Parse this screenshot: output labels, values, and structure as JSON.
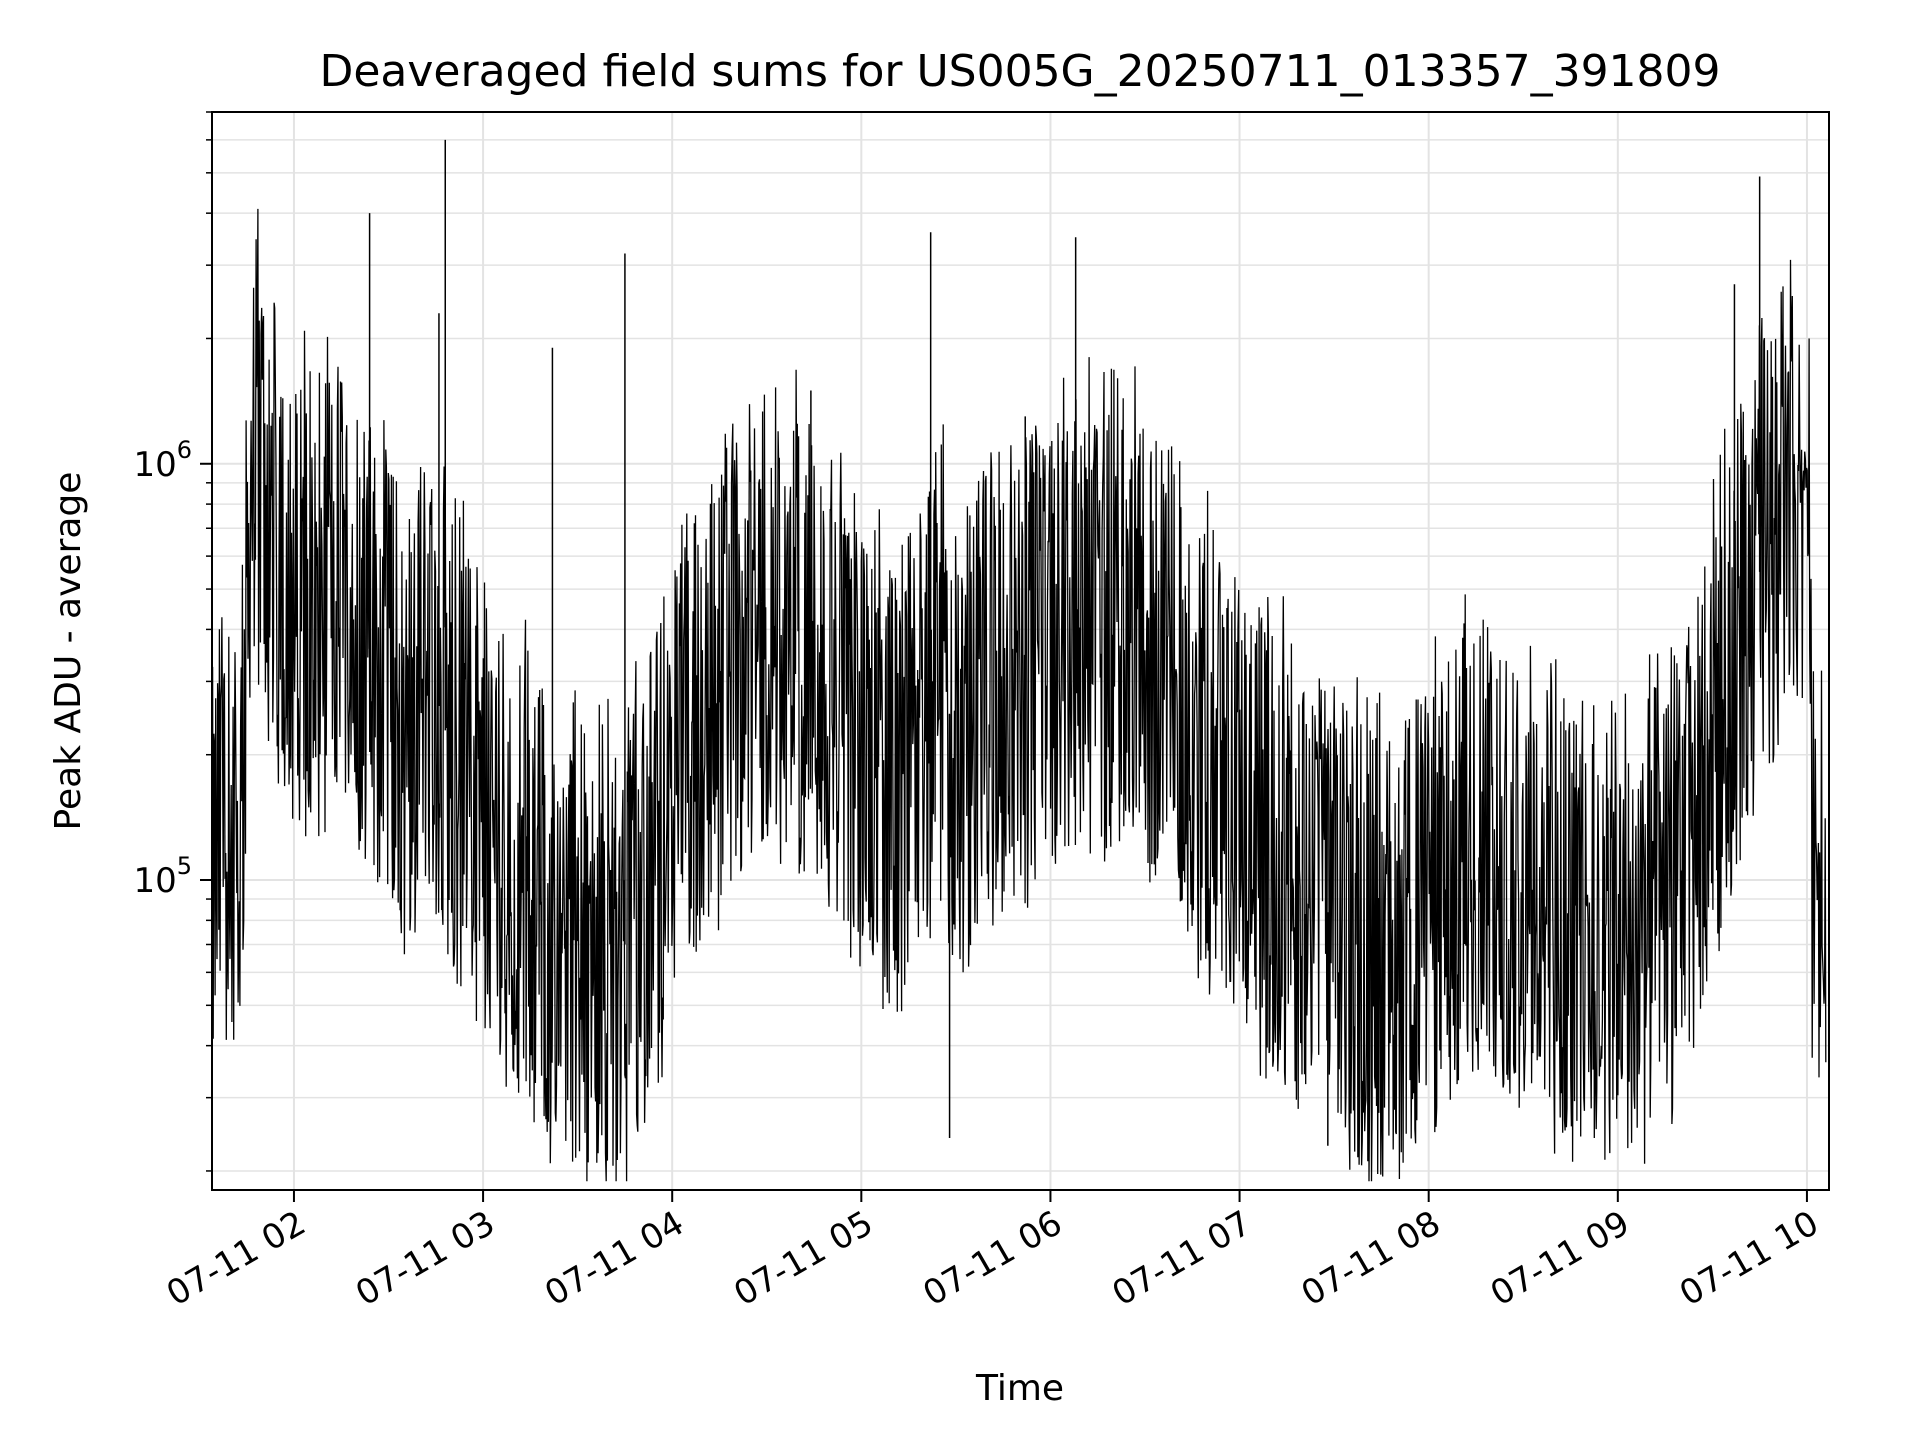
{
  "chart_data": {
    "type": "line",
    "title": "Deaveraged field sums for US005G_20250711_013357_391809",
    "xlabel": "Time",
    "ylabel": "Peak ADU - average",
    "xscale": "time",
    "yscale": "log",
    "xlim": [
      "2025-07-11 01:34",
      "2025-07-11 10:07"
    ],
    "ylim": [
      18000,
      7000000
    ],
    "grid": true,
    "legend": "none",
    "line_color": "#000000",
    "x_ticks": [
      {
        "value": "2025-07-11 02:00",
        "label": "07-11 02"
      },
      {
        "value": "2025-07-11 03:00",
        "label": "07-11 03"
      },
      {
        "value": "2025-07-11 04:00",
        "label": "07-11 04"
      },
      {
        "value": "2025-07-11 05:00",
        "label": "07-11 05"
      },
      {
        "value": "2025-07-11 06:00",
        "label": "07-11 06"
      },
      {
        "value": "2025-07-11 07:00",
        "label": "07-11 07"
      },
      {
        "value": "2025-07-11 08:00",
        "label": "07-11 08"
      },
      {
        "value": "2025-07-11 09:00",
        "label": "07-11 09"
      },
      {
        "value": "2025-07-11 10:00",
        "label": "07-11 10"
      }
    ],
    "y_ticks": [
      {
        "value": 100000,
        "base": "10",
        "exp": "5"
      },
      {
        "value": 1000000,
        "base": "10",
        "exp": "6"
      }
    ],
    "series": [
      {
        "x": [
          "2025-07-11 01:34",
          "2025-07-11 01:36",
          "2025-07-11 01:38",
          "2025-07-11 01:40",
          "2025-07-11 01:42",
          "2025-07-11 01:44",
          "2025-07-11 01:46",
          "2025-07-11 01:48",
          "2025-07-11 01:50",
          "2025-07-11 01:52",
          "2025-07-11 01:54",
          "2025-07-11 01:56",
          "2025-07-11 01:58",
          "2025-07-11 02:00",
          "2025-07-11 02:05",
          "2025-07-11 02:10",
          "2025-07-11 02:15",
          "2025-07-11 02:20",
          "2025-07-11 02:25",
          "2025-07-11 02:30",
          "2025-07-11 02:35",
          "2025-07-11 02:40",
          "2025-07-11 02:45",
          "2025-07-11 02:50",
          "2025-07-11 02:55",
          "2025-07-11 03:00",
          "2025-07-11 03:05",
          "2025-07-11 03:10",
          "2025-07-11 03:15",
          "2025-07-11 03:20",
          "2025-07-11 03:25",
          "2025-07-11 03:30",
          "2025-07-11 03:35",
          "2025-07-11 03:40",
          "2025-07-11 03:45",
          "2025-07-11 03:50",
          "2025-07-11 03:55",
          "2025-07-11 04:00",
          "2025-07-11 04:10",
          "2025-07-11 04:20",
          "2025-07-11 04:30",
          "2025-07-11 04:40",
          "2025-07-11 04:50",
          "2025-07-11 05:00",
          "2025-07-11 05:10",
          "2025-07-11 05:20",
          "2025-07-11 05:25",
          "2025-07-11 05:30",
          "2025-07-11 05:40",
          "2025-07-11 05:50",
          "2025-07-11 06:00",
          "2025-07-11 06:10",
          "2025-07-11 06:20",
          "2025-07-11 06:30",
          "2025-07-11 06:40",
          "2025-07-11 06:50",
          "2025-07-11 07:00",
          "2025-07-11 07:10",
          "2025-07-11 07:20",
          "2025-07-11 07:30",
          "2025-07-11 07:40",
          "2025-07-11 07:50",
          "2025-07-11 08:00",
          "2025-07-11 08:10",
          "2025-07-11 08:20",
          "2025-07-11 08:30",
          "2025-07-11 08:40",
          "2025-07-11 08:50",
          "2025-07-11 09:00",
          "2025-07-11 09:10",
          "2025-07-11 09:20",
          "2025-07-11 09:30",
          "2025-07-11 09:40",
          "2025-07-11 09:45",
          "2025-07-11 09:50",
          "2025-07-11 09:55",
          "2025-07-11 10:00",
          "2025-07-11 10:02",
          "2025-07-11 10:04",
          "2025-07-11 10:06"
        ],
        "y": [
          90000,
          120000,
          125000,
          110000,
          95000,
          200000,
          900000,
          1000000,
          950000,
          850000,
          700000,
          600000,
          500000,
          450000,
          500000,
          450000,
          600000,
          400000,
          350000,
          300000,
          250000,
          300000,
          280000,
          200000,
          180000,
          150000,
          130000,
          110000,
          95000,
          85000,
          75000,
          70000,
          65000,
          62000,
          70000,
          90000,
          120000,
          150000,
          250000,
          350000,
          450000,
          400000,
          300000,
          200000,
          160000,
          250000,
          350000,
          200000,
          300000,
          320000,
          380000,
          400000,
          420000,
          380000,
          300000,
          200000,
          150000,
          120000,
          100000,
          80000,
          70000,
          65000,
          90000,
          110000,
          120000,
          100000,
          85000,
          80000,
          75000,
          80000,
          100000,
          200000,
          450000,
          550000,
          700000,
          900000,
          1000000,
          100000,
          110000,
          40000
        ]
      }
    ],
    "spikes": [
      {
        "x": "2025-07-11 02:24",
        "y": 4000000
      },
      {
        "x": "2025-07-11 02:48",
        "y": 6000000
      },
      {
        "x": "2025-07-11 02:46",
        "y": 2300000
      },
      {
        "x": "2025-07-11 03:22",
        "y": 1900000
      },
      {
        "x": "2025-07-11 03:45",
        "y": 3200000
      },
      {
        "x": "2025-07-11 04:44",
        "y": 1500000
      },
      {
        "x": "2025-07-11 05:22",
        "y": 3600000
      },
      {
        "x": "2025-07-11 05:52",
        "y": 1300000
      },
      {
        "x": "2025-07-11 06:08",
        "y": 3500000
      },
      {
        "x": "2025-07-11 09:37",
        "y": 2700000
      },
      {
        "x": "2025-07-11 09:45",
        "y": 4900000
      },
      {
        "x": "2025-07-11 05:28",
        "y": 24000
      },
      {
        "x": "2025-07-11 07:28",
        "y": 23000
      }
    ]
  }
}
